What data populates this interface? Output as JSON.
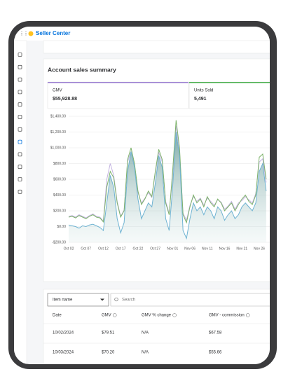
{
  "header": {
    "brand": "Seller Center"
  },
  "summary": {
    "title": "Account sales summary",
    "metrics": [
      {
        "label": "GMV",
        "value": "$55,928.88",
        "color": "#9b7fd0"
      },
      {
        "label": "Units Sold",
        "value": "5,491",
        "color": "#4caf50"
      }
    ]
  },
  "chart_data": {
    "type": "line",
    "categories": [
      "Oct 02",
      null,
      null,
      null,
      null,
      "Oct 07",
      null,
      null,
      null,
      null,
      "Oct 12",
      null,
      null,
      null,
      null,
      "Oct 17",
      null,
      null,
      null,
      null,
      "Oct 22",
      null,
      null,
      null,
      null,
      "Oct 27",
      null,
      null,
      null,
      null,
      "Nov 01",
      null,
      null,
      null,
      null,
      "Nov 06",
      null,
      null,
      null,
      null,
      "Nov 11",
      null,
      null,
      null,
      null,
      "Nov 16",
      null,
      null,
      null,
      null,
      "Nov 21",
      null,
      null,
      null,
      null,
      "Nov 26",
      null,
      null
    ],
    "series": [
      {
        "color": "#c3b3e0",
        "values": [
          130,
          140,
          120,
          150,
          130,
          110,
          140,
          160,
          130,
          120,
          70,
          600,
          800,
          650,
          320,
          130,
          210,
          820,
          950,
          780,
          430,
          300,
          360,
          430,
          370,
          680,
          940,
          820,
          320,
          170,
          650,
          1280,
          950,
          170,
          80,
          270,
          380,
          320,
          360,
          270,
          360,
          320,
          270,
          340,
          310,
          220,
          260,
          320,
          220,
          300,
          330,
          380,
          340,
          300,
          420,
          820,
          860,
          560
        ]
      },
      {
        "color": "#7db36a",
        "values": [
          120,
          130,
          110,
          140,
          120,
          100,
          130,
          150,
          120,
          110,
          60,
          500,
          700,
          620,
          300,
          120,
          200,
          850,
          1000,
          800,
          450,
          280,
          350,
          450,
          380,
          700,
          980,
          850,
          300,
          150,
          700,
          1350,
          1000,
          150,
          50,
          250,
          400,
          300,
          350,
          250,
          380,
          300,
          250,
          350,
          300,
          200,
          250,
          300,
          200,
          280,
          350,
          400,
          320,
          280,
          400,
          880,
          920,
          600
        ]
      },
      {
        "color": "#6fb3d2",
        "area": true,
        "values": [
          20,
          10,
          0,
          -20,
          10,
          0,
          20,
          30,
          10,
          -10,
          -50,
          300,
          650,
          500,
          100,
          -80,
          50,
          700,
          950,
          750,
          350,
          100,
          200,
          300,
          250,
          550,
          900,
          750,
          100,
          -50,
          500,
          1200,
          900,
          -50,
          -150,
          100,
          300,
          200,
          250,
          150,
          250,
          200,
          100,
          250,
          200,
          80,
          150,
          200,
          100,
          150,
          250,
          300,
          250,
          200,
          300,
          700,
          800,
          450
        ]
      }
    ],
    "ylim": [
      -200,
      1400
    ],
    "yticks": [
      {
        "value": -200,
        "label": "-$200.00"
      },
      {
        "value": 0,
        "label": "$0.00"
      },
      {
        "value": 200,
        "label": "$200.00"
      },
      {
        "value": 400,
        "label": "$400.00"
      },
      {
        "value": 600,
        "label": "$600.00"
      },
      {
        "value": 800,
        "label": "$800.00"
      },
      {
        "value": 1000,
        "label": "$1,000.00"
      },
      {
        "value": 1200,
        "label": "$1,200.00"
      },
      {
        "value": 1400,
        "label": "$1,400.00"
      }
    ],
    "grid": true
  },
  "table": {
    "filter": "Item name",
    "search_placeholder": "Search",
    "columns": [
      "Date",
      "GMV",
      "GMV % change",
      "GMV - commission"
    ],
    "rows": [
      [
        "10/02/2024",
        "$79.51",
        "N/A",
        "$67.58"
      ],
      [
        "10/03/2024",
        "$70.20",
        "N/A",
        "$55.66"
      ]
    ]
  }
}
